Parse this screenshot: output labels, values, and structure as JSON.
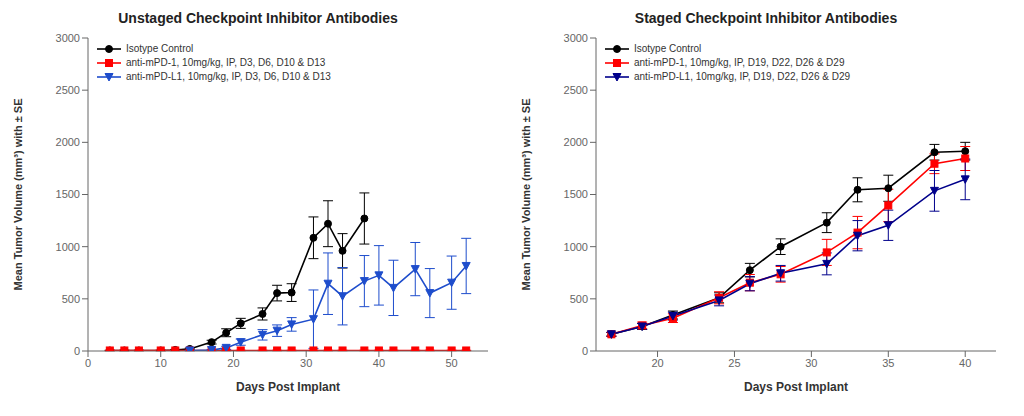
{
  "chart_data": [
    {
      "type": "line",
      "title": "Unstaged Checkpoint Inhibitor Antibodies",
      "xlabel": "Days Post Implant",
      "ylabel": "Mean Tumor Volume (mm³) with ± SE",
      "xlim": [
        0,
        55
      ],
      "ylim": [
        0,
        3000
      ],
      "xticks": [
        0,
        10,
        20,
        30,
        40,
        50
      ],
      "yticks": [
        0,
        500,
        1000,
        1500,
        2000,
        2500,
        3000
      ],
      "grid": false,
      "legend": "upper left",
      "series": [
        {
          "name": "Isotype Control",
          "color": "#000000",
          "marker": "circle",
          "x": [
            3,
            5,
            7,
            10,
            12,
            14,
            17,
            19,
            21,
            24,
            26,
            28,
            31,
            33,
            35,
            38
          ],
          "values": [
            5,
            5,
            5,
            5,
            10,
            20,
            85,
            175,
            265,
            355,
            555,
            560,
            1085,
            1220,
            960,
            1270
          ],
          "errors": [
            2,
            2,
            2,
            2,
            5,
            8,
            18,
            38,
            48,
            58,
            75,
            85,
            200,
            220,
            165,
            245
          ]
        },
        {
          "name": "anti-mPD-1, 10mg/kg, IP, D3, D6, D10 & D13",
          "color": "#ff0000",
          "marker": "square",
          "x": [
            3,
            5,
            7,
            10,
            12,
            14,
            17,
            19,
            21,
            24,
            26,
            28,
            31,
            33,
            35,
            38,
            40,
            42,
            45,
            47,
            50,
            52
          ],
          "values": [
            5,
            5,
            5,
            5,
            5,
            5,
            5,
            5,
            5,
            5,
            5,
            5,
            5,
            5,
            5,
            5,
            5,
            5,
            5,
            5,
            5,
            5
          ],
          "errors": [
            2,
            2,
            2,
            2,
            2,
            2,
            2,
            2,
            2,
            2,
            2,
            2,
            2,
            2,
            2,
            2,
            2,
            2,
            2,
            2,
            2,
            2
          ]
        },
        {
          "name": "anti-mPD-L1, 10mg/kg, IP, D3, D6, D10 & D13",
          "color": "#1e4dcc",
          "marker": "triangle",
          "x": [
            14,
            17,
            19,
            21,
            24,
            26,
            28,
            31,
            33,
            35,
            38,
            40,
            42,
            45,
            47,
            50,
            52
          ],
          "values": [
            5,
            10,
            30,
            85,
            155,
            195,
            255,
            305,
            645,
            525,
            670,
            725,
            605,
            785,
            555,
            655,
            815
          ],
          "errors": [
            2,
            5,
            15,
            30,
            50,
            55,
            65,
            280,
            295,
            275,
            245,
            285,
            265,
            255,
            235,
            255,
            265
          ]
        }
      ]
    },
    {
      "type": "line",
      "title": "Staged Checkpoint Inhibitor Antibodies",
      "xlabel": "Days Post Implant",
      "ylabel": "Mean Tumor Volume (mm³) with ± SE",
      "xlim": [
        16,
        42
      ],
      "ylim": [
        0,
        3000
      ],
      "xticks": [
        20,
        25,
        30,
        35,
        40
      ],
      "yticks": [
        0,
        500,
        1000,
        1500,
        2000,
        2500,
        3000
      ],
      "grid": false,
      "legend": "upper left",
      "series": [
        {
          "name": "Isotype Control",
          "color": "#000000",
          "marker": "circle",
          "x": [
            17,
            19,
            21,
            24,
            26,
            28,
            31,
            33,
            35,
            38,
            40
          ],
          "values": [
            160,
            235,
            345,
            510,
            775,
            1000,
            1230,
            1545,
            1560,
            1905,
            1915
          ],
          "errors": [
            18,
            28,
            38,
            48,
            65,
            75,
            95,
            115,
            125,
            75,
            85
          ]
        },
        {
          "name": "anti-mPD-1, 10mg/kg, IP, D19, D22, D26 & D29",
          "color": "#ff0000",
          "marker": "square",
          "x": [
            17,
            19,
            21,
            24,
            26,
            28,
            31,
            33,
            35,
            38,
            40
          ],
          "values": [
            160,
            245,
            315,
            510,
            655,
            735,
            945,
            1135,
            1395,
            1795,
            1845
          ],
          "errors": [
            18,
            32,
            42,
            58,
            78,
            75,
            125,
            155,
            155,
            95,
            115
          ]
        },
        {
          "name": "anti-mPD-L1, 10mg/kg, IP, D19, D22, D26 & D29",
          "color": "#00008b",
          "marker": "triangle",
          "x": [
            17,
            19,
            21,
            24,
            26,
            28,
            31,
            33,
            35,
            38,
            40
          ],
          "values": [
            160,
            235,
            335,
            485,
            645,
            745,
            835,
            1105,
            1205,
            1535,
            1645
          ],
          "errors": [
            18,
            28,
            38,
            52,
            68,
            75,
            105,
            145,
            145,
            195,
            195
          ]
        }
      ]
    }
  ]
}
